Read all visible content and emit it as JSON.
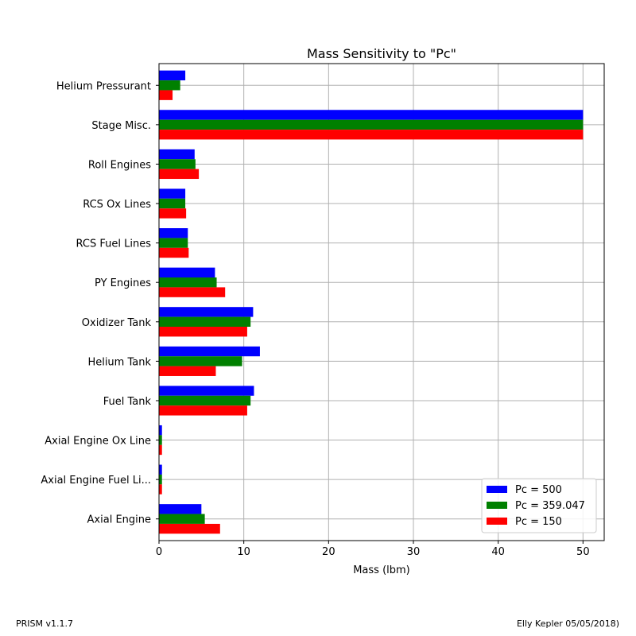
{
  "footer": {
    "left": "PRISM v1.1.7",
    "right": "Elly Kepler 05/05/2018)"
  },
  "colors": {
    "Pc = 500": "#0000ff",
    "Pc = 359.047": "#008000",
    "Pc = 150": "#ff0000"
  },
  "chart_data": {
    "type": "bar",
    "orientation": "horizontal",
    "title": "Mass Sensitivity to \"Pc\"",
    "xlabel": "Mass (lbm)",
    "ylabel": "",
    "xlim": [
      0,
      52.5
    ],
    "xticks": [
      0,
      10,
      20,
      30,
      40,
      50
    ],
    "grid": true,
    "legend_position": "lower right",
    "categories": [
      "Helium Pressurant",
      "Stage Misc.",
      "Roll Engines",
      "RCS Ox Lines",
      "RCS Fuel Lines",
      "PY Engines",
      "Oxidizer Tank",
      "Helium Tank",
      "Fuel Tank",
      "Axial Engine Ox Line",
      "Axial Engine Fuel Li...",
      "Axial Engine"
    ],
    "series": [
      {
        "name": "Pc = 500",
        "values": [
          3.1,
          50,
          4.2,
          3.1,
          3.4,
          6.6,
          11.1,
          11.9,
          11.2,
          0.35,
          0.35,
          5.0
        ]
      },
      {
        "name": "Pc = 359.047",
        "values": [
          2.5,
          50,
          4.3,
          3.1,
          3.4,
          6.8,
          10.8,
          9.8,
          10.8,
          0.35,
          0.35,
          5.4
        ]
      },
      {
        "name": "Pc = 150",
        "values": [
          1.6,
          50,
          4.7,
          3.2,
          3.5,
          7.8,
          10.4,
          6.7,
          10.4,
          0.35,
          0.35,
          7.2
        ]
      }
    ]
  }
}
